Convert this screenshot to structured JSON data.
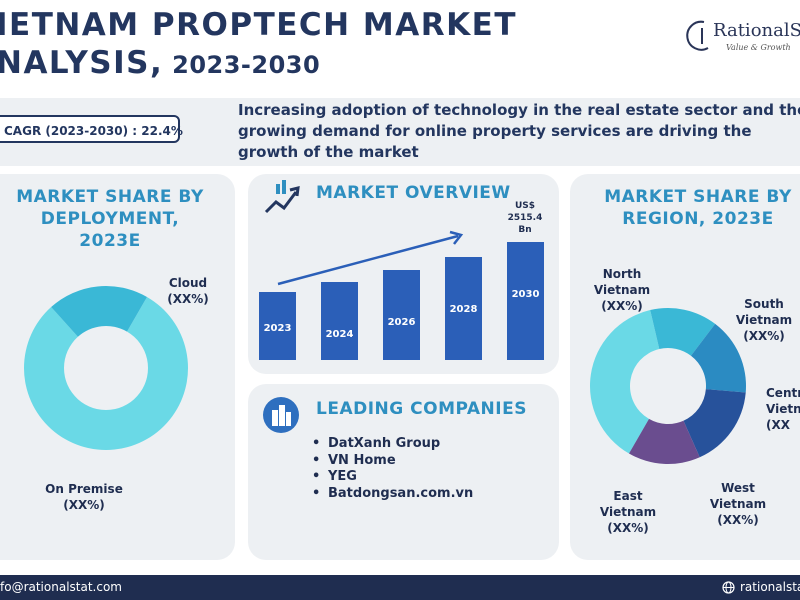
{
  "header": {
    "title_line1": "IETNAM PROPTECH MARKET",
    "title_line2": "NALYSIS,",
    "title_years": " 2023-2030",
    "logo_name": "RationalS",
    "logo_tagline": "Value & Growth"
  },
  "band": {
    "cagr": "CAGR (2023-2030) : 22.4%",
    "driver_text": "Increasing adoption of technology in the real estate sector and the growing demand for online property services are driving the growth of the market"
  },
  "deployment": {
    "title_line1": "MARKET SHARE BY",
    "title_line2": "DEPLOYMENT, 2023E",
    "cloud_label": "Cloud",
    "cloud_value": "(XX%)",
    "premise_label": "On Premise",
    "premise_value": "(XX%)"
  },
  "overview": {
    "title": "MARKET OVERVIEW",
    "callout_line1": "US$",
    "callout_line2": "2515.4",
    "callout_line3": "Bn"
  },
  "companies": {
    "title": "LEADING COMPANIES",
    "items": [
      "DatXanh Group",
      "VN Home",
      "YEG",
      "Batdongsan.com.vn"
    ]
  },
  "region": {
    "title_line1": "MARKET SHARE BY",
    "title_line2": "REGION, 2023E",
    "north_l1": "North",
    "north_l2": "Vietnam",
    "north_v": "(XX%)",
    "south_l1": "South",
    "south_l2": "Vietnam",
    "south_v": "(XX%)",
    "central_l1": "Centr",
    "central_l2": "Vietna",
    "central_v": "(XX",
    "west_l1": "West",
    "west_l2": "Vietnam",
    "west_v": "(XX%)",
    "east_l1": "East",
    "east_l2": "Vietnam",
    "east_v": "(XX%)"
  },
  "footer": {
    "email": "fo@rationalstat.com",
    "website": "rationalstat.com"
  },
  "colors": {
    "navy": "#23365f",
    "accent_blue": "#2e8fc0",
    "bar_blue": "#2b5fb8",
    "card_bg": "#edf0f3"
  },
  "chart_data": [
    {
      "type": "bar",
      "categories": [
        "2023",
        "2024",
        "2026",
        "2028",
        "2030"
      ],
      "values": [
        68,
        78,
        90,
        103,
        118
      ],
      "annotation": "US$ 2515.4 Bn",
      "trend_arrow": true,
      "grid": false
    },
    {
      "type": "pie",
      "donut": true,
      "labels": [
        "Cloud",
        "On Premise"
      ],
      "values": [
        80,
        20
      ],
      "colors": [
        "#6ad9e6",
        "#3ab8d6"
      ]
    },
    {
      "type": "pie",
      "donut": true,
      "labels": [
        "North Vietnam",
        "South Vietnam",
        "Central Vietnam",
        "West Vietnam",
        "East Vietnam"
      ],
      "values": [
        38,
        14,
        16,
        17,
        15
      ],
      "colors": [
        "#6ad9e6",
        "#3ab8d6",
        "#2b8bc2",
        "#27529b",
        "#6a4d8f"
      ]
    }
  ]
}
